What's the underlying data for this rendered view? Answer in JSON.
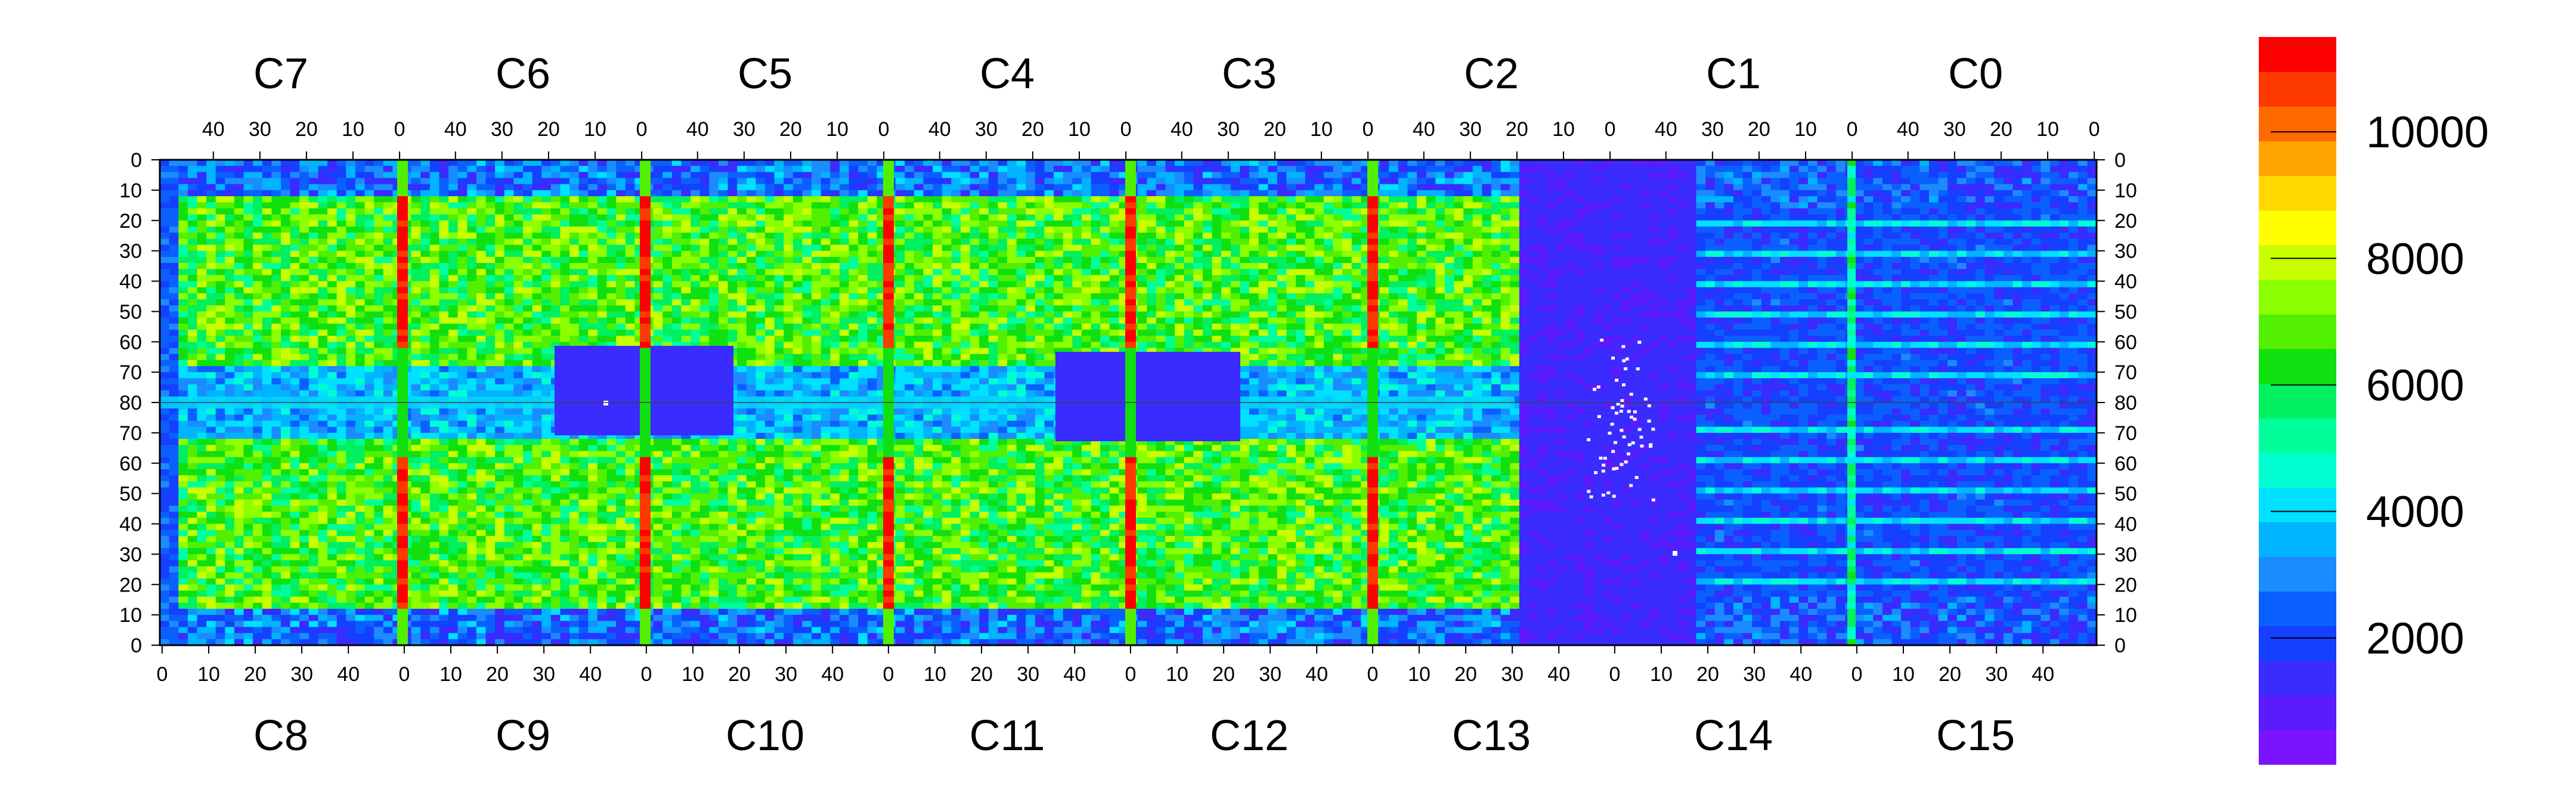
{
  "chart_data": {
    "type": "heatmap",
    "title": "",
    "chips_top": [
      "C7",
      "C6",
      "C5",
      "C4",
      "C3",
      "C2",
      "C1",
      "C0"
    ],
    "chips_bottom": [
      "C8",
      "C9",
      "C10",
      "C11",
      "C12",
      "C13",
      "C14",
      "C15"
    ],
    "x_ticks_top": [
      "40",
      "30",
      "20",
      "10",
      "0"
    ],
    "x_ticks_bottom": [
      "0",
      "10",
      "20",
      "30",
      "40"
    ],
    "y_ticks_top_half": [
      "0",
      "10",
      "20",
      "30",
      "40",
      "50",
      "60",
      "70",
      "80"
    ],
    "y_ticks_bottom_half": [
      "70",
      "60",
      "50",
      "40",
      "30",
      "20",
      "10",
      "0"
    ],
    "columns_per_chip": 52,
    "rows_per_half": 80,
    "colorbar": {
      "range": [
        0,
        11500
      ],
      "ticks": [
        "2000",
        "4000",
        "6000",
        "8000",
        "10000"
      ],
      "colors": [
        "#7a14ff",
        "#5a1bff",
        "#3a2bff",
        "#1540ff",
        "#0a60ff",
        "#1b8cff",
        "#00b4ff",
        "#00e0ff",
        "#00ffd0",
        "#00ff9a",
        "#00f060",
        "#10e010",
        "#52f000",
        "#8cff00",
        "#c8ff00",
        "#ffff00",
        "#ffd800",
        "#ffa400",
        "#ff6a00",
        "#ff3a00",
        "#ff0000"
      ]
    },
    "notes": "Per-pixel counts for 16 chips C0-C15 in a 2x8 module layout; white pixels are masked/dead."
  }
}
